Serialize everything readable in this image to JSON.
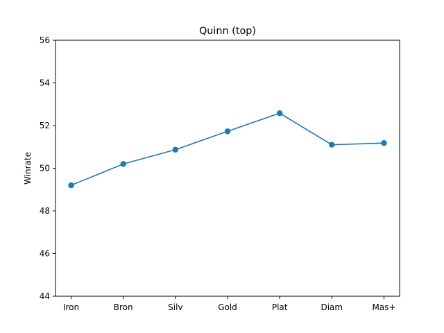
{
  "chart_data": {
    "type": "line",
    "title": "Quinn (top)",
    "xlabel": "",
    "ylabel": "Winrate",
    "categories": [
      "Iron",
      "Bron",
      "Silv",
      "Gold",
      "Plat",
      "Diam",
      "Mas+"
    ],
    "series": [
      {
        "values": [
          49.2,
          50.2,
          50.87,
          51.73,
          52.58,
          51.1,
          51.18
        ]
      }
    ],
    "ylim": [
      44,
      56
    ],
    "yticks": [
      "44",
      "46",
      "48",
      "50",
      "52",
      "54",
      "56"
    ],
    "grid": false,
    "color": "#1f77b4"
  }
}
